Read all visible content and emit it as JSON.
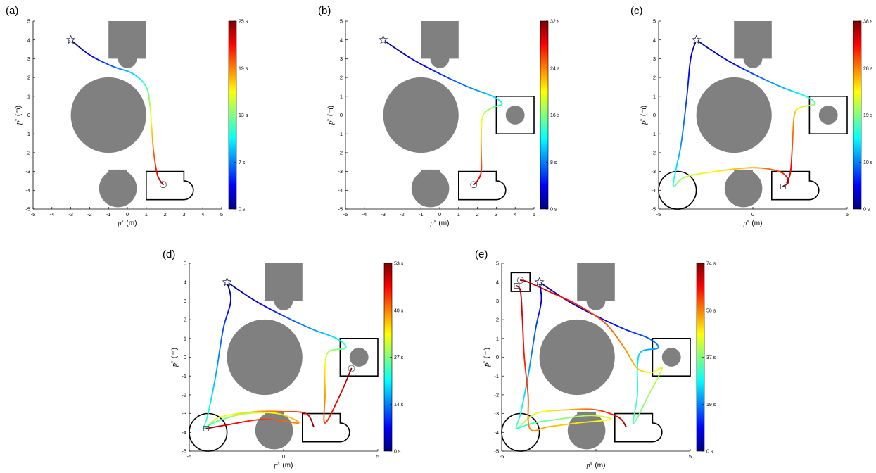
{
  "colors": {
    "obstacle": "#808080",
    "region_stroke": "#000000",
    "axis": "#000000",
    "colormap": "jet"
  },
  "icons": {
    "start": "star-icon",
    "goal_marker": "circle-icon",
    "goal_marker_square": "square-icon"
  },
  "chart_data": [
    {
      "type": "line",
      "panel_label": "(a)",
      "xlim": [
        -5,
        5
      ],
      "ylim": [
        -5,
        5
      ],
      "xticks": [
        "-5",
        "-4",
        "-3",
        "-2",
        "-1",
        "0",
        "1",
        "2",
        "3",
        "4",
        "5"
      ],
      "yticks": [
        "-5",
        "-4",
        "-3",
        "-2",
        "-1",
        "0",
        "1",
        "2",
        "3",
        "4",
        "5"
      ],
      "xlabel": "p^x (m)",
      "ylabel": "p^y (m)",
      "colorbar": {
        "ticks": [
          "0 s",
          "7 s",
          "13 s",
          "19 s",
          "25 s"
        ],
        "max": 25
      },
      "start": [
        -3,
        4
      ],
      "markers": [
        {
          "shape": "circle",
          "x": 1.9,
          "y": -3.7
        }
      ],
      "regions": [
        "button"
      ],
      "trajectories": [
        {
          "t0": 0,
          "t1": 25,
          "points": [
            [
              -3,
              4
            ],
            [
              -2,
              3.2
            ],
            [
              -0.8,
              2.6
            ],
            [
              0.3,
              2.2
            ],
            [
              1.0,
              1.5
            ],
            [
              1.2,
              0.5
            ],
            [
              1.3,
              -0.8
            ],
            [
              1.4,
              -2.0
            ],
            [
              1.6,
              -3.2
            ],
            [
              1.9,
              -3.7
            ]
          ]
        }
      ]
    },
    {
      "type": "line",
      "panel_label": "(b)",
      "xlim": [
        -5,
        5
      ],
      "ylim": [
        -5,
        5
      ],
      "xticks": [
        "-5",
        "-4",
        "-3",
        "-2",
        "-1",
        "0",
        "1",
        "2",
        "3",
        "4",
        "5"
      ],
      "yticks": [
        "-5",
        "-4",
        "-3",
        "-2",
        "-1",
        "0",
        "1",
        "2",
        "3",
        "4",
        "5"
      ],
      "xlabel": "p^x (m)",
      "ylabel": "p^y (m)",
      "colorbar": {
        "ticks": [
          "0 s",
          "8 s",
          "16 s",
          "24 s",
          "32 s"
        ],
        "max": 32
      },
      "start": [
        -3,
        4
      ],
      "markers": [
        {
          "shape": "circle",
          "x": 1.8,
          "y": -3.7
        }
      ],
      "regions": [
        "button",
        "square"
      ],
      "trajectories": [
        {
          "t0": 0,
          "t1": 32,
          "points": [
            [
              -3,
              4
            ],
            [
              -1.5,
              3.0
            ],
            [
              0,
              2.2
            ],
            [
              1.5,
              1.5
            ],
            [
              2.8,
              1.0
            ],
            [
              3.3,
              0.6
            ],
            [
              2.8,
              0.4
            ],
            [
              2.3,
              0
            ],
            [
              2.2,
              -1.0
            ],
            [
              2.2,
              -2.0
            ],
            [
              2.2,
              -3.0
            ],
            [
              2.0,
              -3.5
            ],
            [
              1.8,
              -3.7
            ]
          ]
        }
      ]
    },
    {
      "type": "line",
      "panel_label": "(c)",
      "xlim": [
        -5,
        5
      ],
      "ylim": [
        -5,
        5
      ],
      "xticks": [
        "-5",
        "0",
        "5"
      ],
      "yticks": [
        "-5",
        "-4",
        "-3",
        "-2",
        "-1",
        "0",
        "1",
        "2",
        "3",
        "4",
        "5"
      ],
      "xlabel": "p^x (m)",
      "ylabel": "p^y (m)",
      "colorbar": {
        "ticks": [
          "0 s",
          "10 s",
          "19 s",
          "28 s",
          "38 s"
        ],
        "max": 38
      },
      "start": [
        -3,
        4
      ],
      "markers": [
        {
          "shape": "square",
          "x": 1.6,
          "y": -3.8
        }
      ],
      "regions": [
        "button",
        "square",
        "circle"
      ],
      "trajectories": [
        {
          "t0": 0,
          "t1": 38,
          "points": [
            [
              -3,
              4
            ],
            [
              -3.3,
              3.0
            ],
            [
              -3.5,
              1.0
            ],
            [
              -3.8,
              -1.5
            ],
            [
              -4.1,
              -3.0
            ],
            [
              -4.2,
              -3.8
            ],
            [
              -3.6,
              -3.3
            ],
            [
              -2.0,
              -3.0
            ],
            [
              0,
              -2.8
            ],
            [
              1.4,
              -3.0
            ],
            [
              1.9,
              -3.5
            ],
            [
              1.6,
              -3.8
            ]
          ]
        },
        {
          "t0": 0,
          "t1": 38,
          "points": [
            [
              -3,
              4
            ],
            [
              -1.5,
              3.0
            ],
            [
              0,
              2.2
            ],
            [
              1.5,
              1.5
            ],
            [
              2.8,
              1.0
            ],
            [
              3.3,
              0.6
            ],
            [
              2.5,
              0.4
            ],
            [
              2.2,
              0
            ],
            [
              2.1,
              -1.5
            ],
            [
              2.0,
              -3.0
            ],
            [
              1.8,
              -3.6
            ]
          ]
        }
      ]
    },
    {
      "type": "line",
      "panel_label": "(d)",
      "xlim": [
        -5,
        5
      ],
      "ylim": [
        -5,
        5
      ],
      "xticks": [
        "-5",
        "0",
        "5"
      ],
      "yticks": [
        "-5",
        "-4",
        "-3",
        "-2",
        "-1",
        "0",
        "1",
        "2",
        "3",
        "4",
        "5"
      ],
      "xlabel": "p^x (m)",
      "ylabel": "p^y (m)",
      "colorbar": {
        "ticks": [
          "0 s",
          "14 s",
          "27 s",
          "40 s",
          "53 s"
        ],
        "max": 53
      },
      "start": [
        -3,
        4
      ],
      "markers": [
        {
          "shape": "circle",
          "x": 3.6,
          "y": -0.6
        },
        {
          "shape": "square",
          "x": -4.1,
          "y": -3.8
        }
      ],
      "regions": [
        "button",
        "square",
        "circle"
      ],
      "trajectories": [
        {
          "t0": 0,
          "t1": 53,
          "points": [
            [
              -3,
              4
            ],
            [
              -2.8,
              3.0
            ],
            [
              -3.2,
              1.5
            ],
            [
              -3.6,
              -1.0
            ],
            [
              -4.0,
              -3.0
            ],
            [
              -4.2,
              -3.8
            ],
            [
              -3.4,
              -3.2
            ],
            [
              -1.5,
              -2.9
            ],
            [
              0,
              -2.9
            ],
            [
              1.2,
              -3.0
            ],
            [
              1.6,
              -3.7
            ]
          ]
        },
        {
          "t0": 0,
          "t1": 53,
          "points": [
            [
              -3,
              4
            ],
            [
              -1.5,
              3.0
            ],
            [
              0,
              2.2
            ],
            [
              1.5,
              1.5
            ],
            [
              2.8,
              1.0
            ],
            [
              3.3,
              0.5
            ],
            [
              2.4,
              0.3
            ],
            [
              2.2,
              -0.5
            ],
            [
              2.2,
              -2.0
            ],
            [
              2.2,
              -3.5
            ],
            [
              3.0,
              -2.0
            ],
            [
              3.6,
              -0.6
            ]
          ]
        },
        {
          "t0": 20,
          "t1": 53,
          "points": [
            [
              -4.2,
              -3.8
            ],
            [
              -3.5,
              -3.4
            ],
            [
              -2.0,
              -3.0
            ],
            [
              -0.3,
              -3.0
            ],
            [
              0.8,
              -3.5
            ],
            [
              -1.0,
              -3.3
            ],
            [
              -3.0,
              -3.6
            ],
            [
              -4.1,
              -3.8
            ]
          ]
        }
      ]
    },
    {
      "type": "line",
      "panel_label": "(e)",
      "xlim": [
        -5,
        5
      ],
      "ylim": [
        -5,
        5
      ],
      "xticks": [
        "-5",
        "0",
        "5"
      ],
      "yticks": [
        "-5",
        "-4",
        "-3",
        "-2",
        "-1",
        "0",
        "1",
        "2",
        "3",
        "4",
        "5"
      ],
      "xlabel": "p^x (m)",
      "ylabel": "p^y (m)",
      "colorbar": {
        "ticks": [
          "0 s",
          "19 s",
          "37 s",
          "56 s",
          "74 s"
        ],
        "max": 74
      },
      "start": [
        -3,
        4
      ],
      "markers": [
        {
          "shape": "circle",
          "x": -4.0,
          "y": 4.1
        },
        {
          "shape": "square",
          "x": -4.2,
          "y": 3.8
        }
      ],
      "regions": [
        "button",
        "square",
        "circle",
        "small_square"
      ],
      "trajectories": [
        {
          "t0": 0,
          "t1": 74,
          "points": [
            [
              -3,
              4
            ],
            [
              -1.5,
              3.0
            ],
            [
              0,
              2.2
            ],
            [
              1.5,
              1.5
            ],
            [
              2.8,
              1.0
            ],
            [
              3.3,
              0.5
            ],
            [
              2.4,
              0.3
            ],
            [
              2.2,
              -0.5
            ],
            [
              2.2,
              -2.0
            ],
            [
              2.0,
              -3.5
            ],
            [
              2.8,
              -2.0
            ],
            [
              3.5,
              -0.6
            ],
            [
              3.0,
              -0.8
            ],
            [
              2.2,
              -0.6
            ],
            [
              1.5,
              0.5
            ],
            [
              0.5,
              1.8
            ],
            [
              -1.0,
              2.8
            ],
            [
              -2.5,
              3.5
            ],
            [
              -3.6,
              4.0
            ],
            [
              -4.0,
              4.1
            ]
          ]
        },
        {
          "t0": 0,
          "t1": 74,
          "points": [
            [
              -3,
              4
            ],
            [
              -2.9,
              3.0
            ],
            [
              -3.2,
              1.5
            ],
            [
              -3.6,
              -1.0
            ],
            [
              -4.0,
              -3.0
            ],
            [
              -4.2,
              -3.8
            ],
            [
              -3.2,
              -3.0
            ],
            [
              -1.5,
              -2.8
            ],
            [
              0,
              -2.8
            ],
            [
              1.2,
              -3.2
            ],
            [
              1.6,
              -3.7
            ]
          ]
        },
        {
          "t0": 30,
          "t1": 74,
          "points": [
            [
              -4.2,
              -3.8
            ],
            [
              -3.3,
              -3.5
            ],
            [
              -2.0,
              -3.3
            ],
            [
              -0.3,
              -3.1
            ],
            [
              0.8,
              -3.3
            ],
            [
              -1.0,
              -3.5
            ],
            [
              -2.5,
              -3.7
            ],
            [
              -3.5,
              -3.8
            ],
            [
              -3.6,
              -2.0
            ],
            [
              -3.8,
              0
            ],
            [
              -3.9,
              2.0
            ],
            [
              -4.0,
              3.5
            ],
            [
              -4.2,
              3.8
            ]
          ]
        }
      ]
    }
  ]
}
